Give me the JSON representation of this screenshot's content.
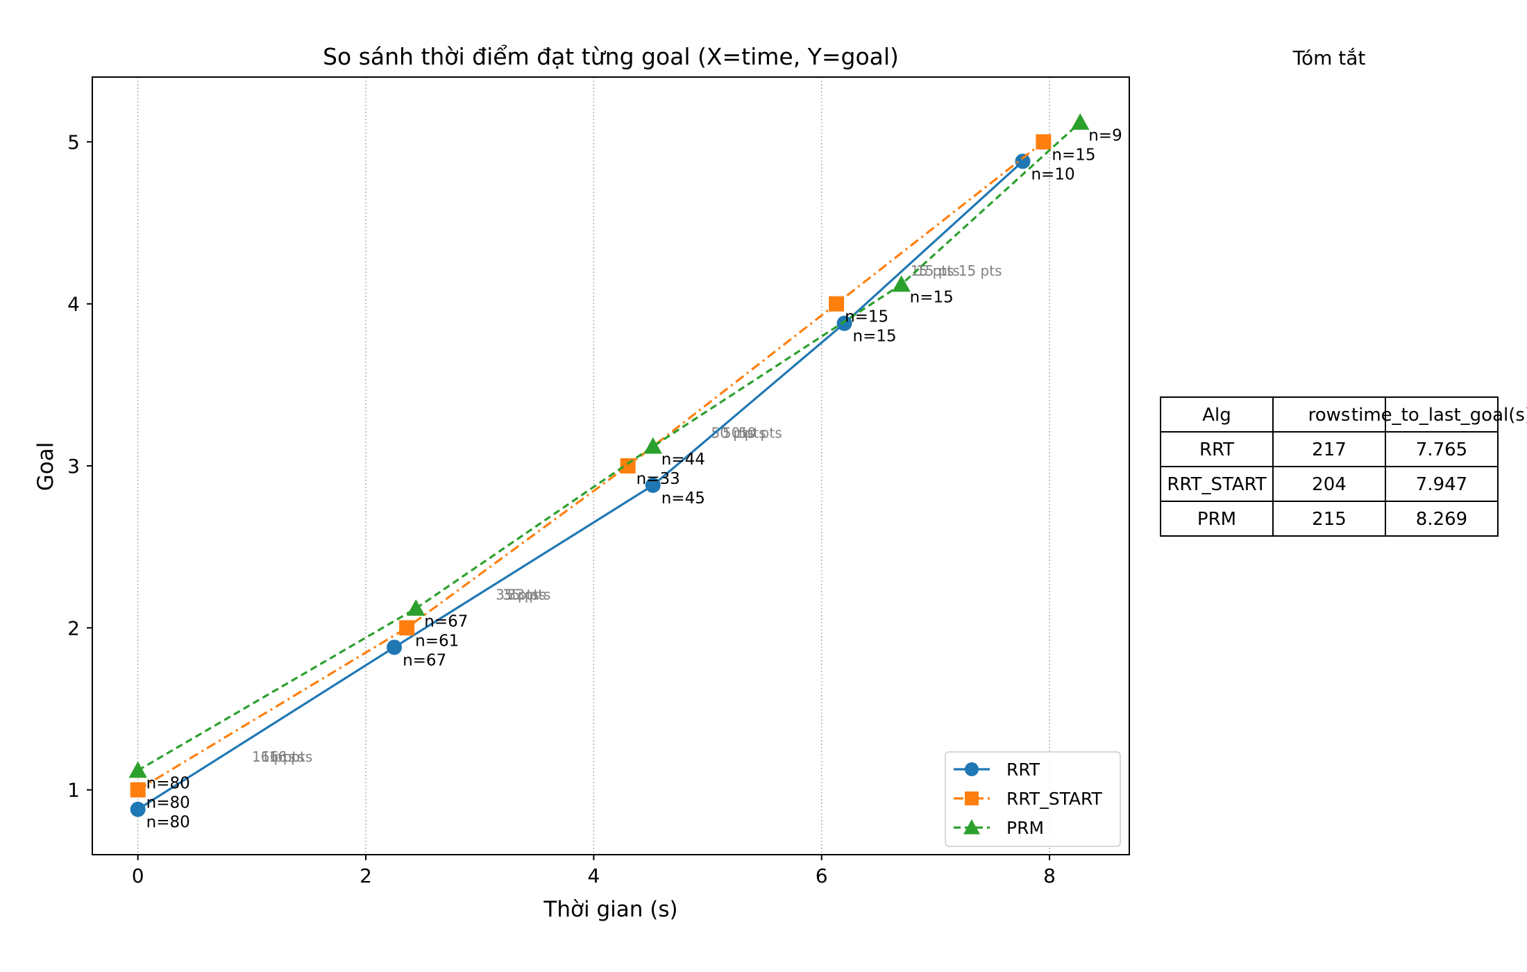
{
  "chart_data": {
    "type": "line",
    "title": "So sánh thời điểm đạt từng goal (X=time, Y=goal)",
    "xlabel": "Thời gian (s)",
    "ylabel": "Goal",
    "xlim": [
      -0.4,
      8.7
    ],
    "ylim": [
      0.6,
      5.4
    ],
    "xticks": [
      0,
      2,
      4,
      6,
      8
    ],
    "yticks": [
      1,
      2,
      3,
      4,
      5
    ],
    "grid": "vertical dotted",
    "legend_position": "lower-right",
    "series": [
      {
        "name": "RRT",
        "color": "#1f77b4",
        "marker": "circle",
        "dash": "solid",
        "points": [
          {
            "x": 0.0,
            "y": 0.88,
            "label": "n=80"
          },
          {
            "x": 2.25,
            "y": 1.88,
            "label": "n=67"
          },
          {
            "x": 4.52,
            "y": 2.88,
            "label": "n=45"
          },
          {
            "x": 6.2,
            "y": 3.88,
            "label": "n=15"
          },
          {
            "x": 7.765,
            "y": 4.88,
            "label": "n=10"
          }
        ]
      },
      {
        "name": "RRT_START",
        "color": "#ff7f0e",
        "marker": "square",
        "dash": "dashdot",
        "points": [
          {
            "x": 0.0,
            "y": 1.0,
            "label": "n=80"
          },
          {
            "x": 2.36,
            "y": 2.0,
            "label": "n=61"
          },
          {
            "x": 4.3,
            "y": 3.0,
            "label": "n=33"
          },
          {
            "x": 6.13,
            "y": 4.0,
            "label": "n=15"
          },
          {
            "x": 7.947,
            "y": 5.0,
            "label": "n=15"
          }
        ]
      },
      {
        "name": "PRM",
        "color": "#2ca02c",
        "marker": "triangle",
        "dash": "dashed",
        "points": [
          {
            "x": 0.0,
            "y": 1.12,
            "label": "n=80"
          },
          {
            "x": 2.44,
            "y": 2.12,
            "label": "n=67"
          },
          {
            "x": 4.52,
            "y": 3.12,
            "label": "n=44"
          },
          {
            "x": 6.7,
            "y": 4.12,
            "label": "n=15"
          },
          {
            "x": 8.269,
            "y": 5.12,
            "label": "n=9"
          }
        ]
      }
    ],
    "segment_annotations": [
      {
        "x": 1.0,
        "y": 1.2,
        "text": "16 pts"
      },
      {
        "x": 1.08,
        "y": 1.2,
        "text": "16 pts"
      },
      {
        "x": 1.15,
        "y": 1.2,
        "text": "16 pts"
      },
      {
        "x": 3.14,
        "y": 2.2,
        "text": "35 pts"
      },
      {
        "x": 3.24,
        "y": 2.2,
        "text": "33 pts"
      },
      {
        "x": 3.2,
        "y": 2.2,
        "text": "35 pts"
      },
      {
        "x": 5.03,
        "y": 3.2,
        "text": "50 pts"
      },
      {
        "x": 5.13,
        "y": 3.2,
        "text": "50 pts"
      },
      {
        "x": 5.27,
        "y": 3.2,
        "text": "50 pts"
      },
      {
        "x": 6.78,
        "y": 4.2,
        "text": "15 pts"
      },
      {
        "x": 6.83,
        "y": 4.2,
        "text": "15 pts"
      },
      {
        "x": 7.2,
        "y": 4.2,
        "text": "15 pts"
      }
    ]
  },
  "summary": {
    "title": "Tóm tắt",
    "headers": [
      "Alg",
      "rows",
      "time_to_last_goal(s)"
    ],
    "rows": [
      [
        "RRT",
        "217",
        "7.765"
      ],
      [
        "RRT_START",
        "204",
        "7.947"
      ],
      [
        "PRM",
        "215",
        "8.269"
      ]
    ]
  }
}
